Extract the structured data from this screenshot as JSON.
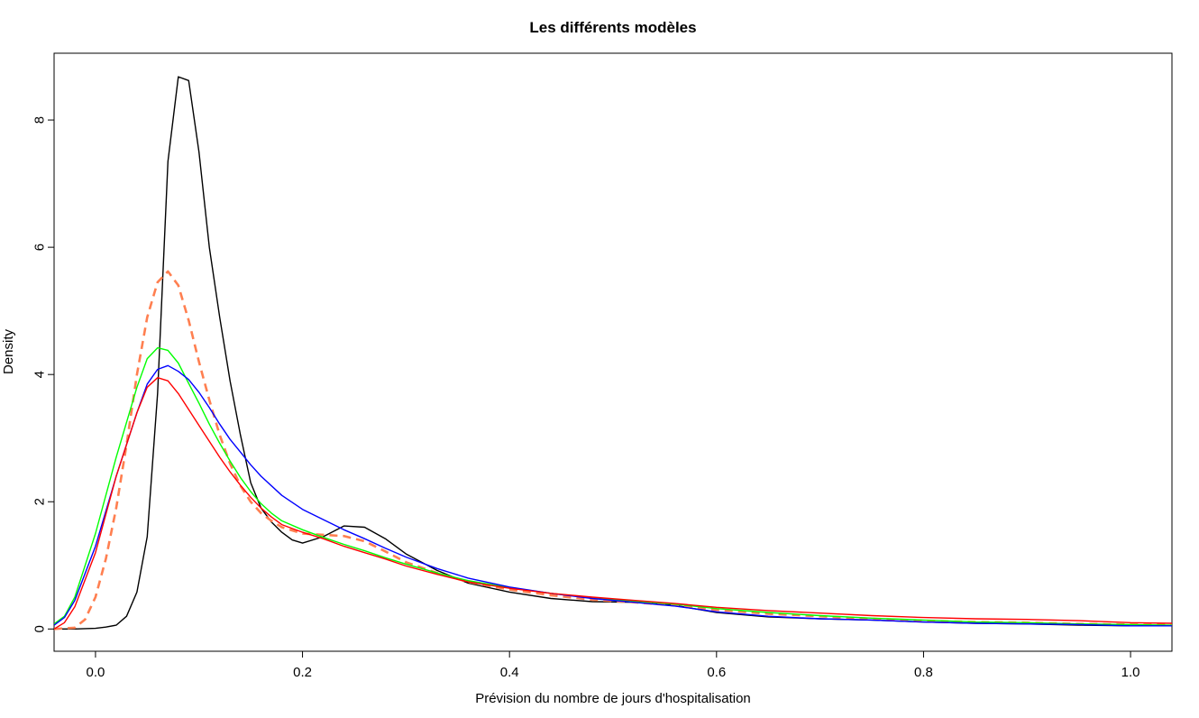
{
  "chart_data": {
    "type": "line",
    "title": "Les différents modèles",
    "xlabel": "Prévision du nombre de jours d'hospitalisation",
    "ylabel": "Density",
    "xlim": [
      -0.04,
      1.04
    ],
    "ylim": [
      -0.35,
      9.05
    ],
    "x_ticks": [
      0.0,
      0.2,
      0.4,
      0.6,
      0.8,
      1.0
    ],
    "x_tick_labels": [
      "0.0",
      "0.2",
      "0.4",
      "0.6",
      "0.8",
      "1.0"
    ],
    "y_ticks": [
      0,
      2,
      4,
      6,
      8
    ],
    "y_tick_labels": [
      "0",
      "2",
      "4",
      "6",
      "8"
    ],
    "grid": false,
    "series": [
      {
        "color": "#000000",
        "dashed": false,
        "x": [
          -0.04,
          -0.02,
          0.0,
          0.01,
          0.02,
          0.03,
          0.04,
          0.05,
          0.06,
          0.07,
          0.08,
          0.09,
          0.1,
          0.11,
          0.12,
          0.13,
          0.14,
          0.15,
          0.16,
          0.17,
          0.18,
          0.19,
          0.2,
          0.22,
          0.24,
          0.26,
          0.28,
          0.3,
          0.33,
          0.36,
          0.4,
          0.44,
          0.48,
          0.52,
          0.56,
          0.6,
          0.65,
          0.7,
          0.75,
          0.8,
          0.85,
          0.9,
          0.95,
          1.0,
          1.04
        ],
        "y": [
          0.0,
          0.0,
          0.01,
          0.03,
          0.06,
          0.2,
          0.58,
          1.45,
          3.7,
          7.35,
          8.68,
          8.62,
          7.5,
          6.0,
          4.9,
          3.9,
          3.05,
          2.3,
          1.9,
          1.68,
          1.52,
          1.4,
          1.35,
          1.45,
          1.62,
          1.6,
          1.42,
          1.18,
          0.92,
          0.72,
          0.58,
          0.48,
          0.43,
          0.42,
          0.37,
          0.26,
          0.19,
          0.16,
          0.14,
          0.11,
          0.09,
          0.08,
          0.06,
          0.05,
          0.05
        ]
      },
      {
        "color": "#ff7f50",
        "dashed": true,
        "x": [
          -0.04,
          -0.02,
          -0.01,
          0.0,
          0.01,
          0.02,
          0.03,
          0.04,
          0.05,
          0.06,
          0.07,
          0.08,
          0.09,
          0.1,
          0.11,
          0.12,
          0.13,
          0.14,
          0.15,
          0.16,
          0.17,
          0.18,
          0.2,
          0.22,
          0.24,
          0.26,
          0.28,
          0.3,
          0.33,
          0.36,
          0.4,
          0.44,
          0.48,
          0.52,
          0.56,
          0.6,
          0.65,
          0.7,
          0.75,
          0.8,
          0.85,
          0.9,
          0.95,
          1.0,
          1.04
        ],
        "y": [
          0.0,
          0.02,
          0.15,
          0.5,
          1.1,
          1.9,
          2.9,
          4.0,
          4.9,
          5.45,
          5.62,
          5.4,
          4.85,
          4.2,
          3.6,
          3.05,
          2.6,
          2.25,
          2.0,
          1.82,
          1.7,
          1.6,
          1.5,
          1.48,
          1.46,
          1.38,
          1.22,
          1.05,
          0.88,
          0.74,
          0.62,
          0.53,
          0.46,
          0.42,
          0.37,
          0.3,
          0.24,
          0.2,
          0.16,
          0.13,
          0.11,
          0.1,
          0.08,
          0.07,
          0.06
        ]
      },
      {
        "color": "#00ff00",
        "dashed": false,
        "x": [
          -0.04,
          -0.03,
          -0.02,
          0.0,
          0.02,
          0.04,
          0.05,
          0.06,
          0.07,
          0.08,
          0.09,
          0.1,
          0.11,
          0.12,
          0.13,
          0.14,
          0.15,
          0.16,
          0.17,
          0.18,
          0.2,
          0.22,
          0.24,
          0.26,
          0.28,
          0.3,
          0.33,
          0.36,
          0.4,
          0.44,
          0.48,
          0.52,
          0.56,
          0.6,
          0.65,
          0.7,
          0.75,
          0.8,
          0.85,
          0.9,
          0.95,
          1.0,
          1.04
        ],
        "y": [
          0.08,
          0.2,
          0.5,
          1.5,
          2.7,
          3.8,
          4.25,
          4.42,
          4.38,
          4.18,
          3.86,
          3.55,
          3.22,
          2.92,
          2.64,
          2.38,
          2.16,
          1.97,
          1.82,
          1.7,
          1.56,
          1.44,
          1.33,
          1.23,
          1.12,
          1.02,
          0.88,
          0.76,
          0.65,
          0.56,
          0.49,
          0.44,
          0.39,
          0.32,
          0.26,
          0.21,
          0.17,
          0.14,
          0.11,
          0.1,
          0.08,
          0.07,
          0.06
        ]
      },
      {
        "color": "#0000ff",
        "dashed": false,
        "x": [
          -0.04,
          -0.03,
          -0.02,
          0.0,
          0.02,
          0.04,
          0.05,
          0.06,
          0.07,
          0.08,
          0.09,
          0.1,
          0.11,
          0.12,
          0.13,
          0.14,
          0.15,
          0.16,
          0.18,
          0.2,
          0.22,
          0.24,
          0.26,
          0.28,
          0.3,
          0.33,
          0.36,
          0.4,
          0.44,
          0.48,
          0.52,
          0.56,
          0.6,
          0.65,
          0.7,
          0.75,
          0.8,
          0.85,
          0.9,
          0.95,
          1.0,
          1.04
        ],
        "y": [
          0.06,
          0.18,
          0.45,
          1.3,
          2.4,
          3.4,
          3.85,
          4.08,
          4.14,
          4.05,
          3.92,
          3.72,
          3.48,
          3.22,
          2.98,
          2.78,
          2.58,
          2.4,
          2.1,
          1.88,
          1.72,
          1.56,
          1.42,
          1.27,
          1.13,
          0.95,
          0.8,
          0.66,
          0.56,
          0.48,
          0.42,
          0.36,
          0.27,
          0.2,
          0.16,
          0.14,
          0.11,
          0.09,
          0.08,
          0.07,
          0.05,
          0.05
        ]
      },
      {
        "color": "#ff0000",
        "dashed": false,
        "x": [
          -0.04,
          -0.03,
          -0.02,
          0.0,
          0.02,
          0.04,
          0.05,
          0.06,
          0.07,
          0.08,
          0.09,
          0.1,
          0.11,
          0.12,
          0.13,
          0.14,
          0.15,
          0.16,
          0.17,
          0.18,
          0.2,
          0.22,
          0.24,
          0.26,
          0.28,
          0.3,
          0.33,
          0.36,
          0.4,
          0.44,
          0.48,
          0.52,
          0.56,
          0.6,
          0.65,
          0.7,
          0.75,
          0.8,
          0.85,
          0.9,
          0.95,
          1.0,
          1.04
        ],
        "y": [
          0.0,
          0.1,
          0.35,
          1.2,
          2.4,
          3.4,
          3.8,
          3.95,
          3.9,
          3.7,
          3.45,
          3.2,
          2.95,
          2.7,
          2.47,
          2.26,
          2.07,
          1.9,
          1.76,
          1.64,
          1.52,
          1.42,
          1.3,
          1.2,
          1.1,
          0.99,
          0.86,
          0.74,
          0.64,
          0.56,
          0.5,
          0.45,
          0.4,
          0.34,
          0.29,
          0.25,
          0.21,
          0.18,
          0.16,
          0.15,
          0.13,
          0.1,
          0.09
        ]
      }
    ]
  }
}
